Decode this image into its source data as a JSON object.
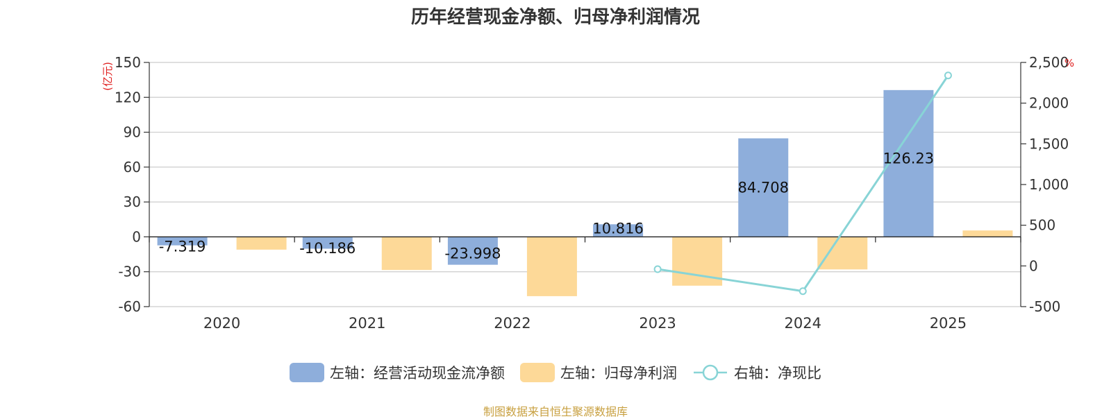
{
  "chart_data": {
    "type": "bar",
    "title": "历年经营现金净额、归母净利润情况",
    "categories": [
      "2020",
      "2021",
      "2022",
      "2023",
      "2024",
      "2025"
    ],
    "left_axis": {
      "unit": "(亿元)",
      "ylim": [
        -60,
        150
      ],
      "ticks": [
        "150",
        "120",
        "90",
        "60",
        "30",
        "0",
        "-30",
        "-60"
      ]
    },
    "right_axis": {
      "unit": "%",
      "ylim": [
        -500,
        2500
      ],
      "ticks": [
        "2,500",
        "2,000",
        "1,500",
        "1,000",
        "500",
        "0",
        "-500"
      ]
    },
    "series": [
      {
        "name": "左轴：经营活动现金流净额",
        "type": "bar",
        "axis": "left",
        "color": "#8eaedb",
        "values": [
          -7.319,
          -10.186,
          -23.998,
          10.816,
          84.708,
          126.23
        ],
        "labels": [
          "-7.319",
          "-10.186",
          "-23.998",
          "10.816",
          "84.708",
          "126.23"
        ]
      },
      {
        "name": "左轴：归母净利润",
        "type": "bar",
        "axis": "left",
        "color": "#fdd998",
        "values": [
          -11,
          -28.5,
          -51,
          -42,
          -28,
          5.5
        ]
      },
      {
        "name": "右轴：净现比",
        "type": "line",
        "axis": "right",
        "color": "#88d4d6",
        "values": [
          null,
          null,
          null,
          -40,
          -310,
          2340
        ]
      }
    ],
    "grid": true,
    "legend_position": "bottom"
  },
  "footer": {
    "source": "制图数据来自恒生聚源数据库"
  }
}
